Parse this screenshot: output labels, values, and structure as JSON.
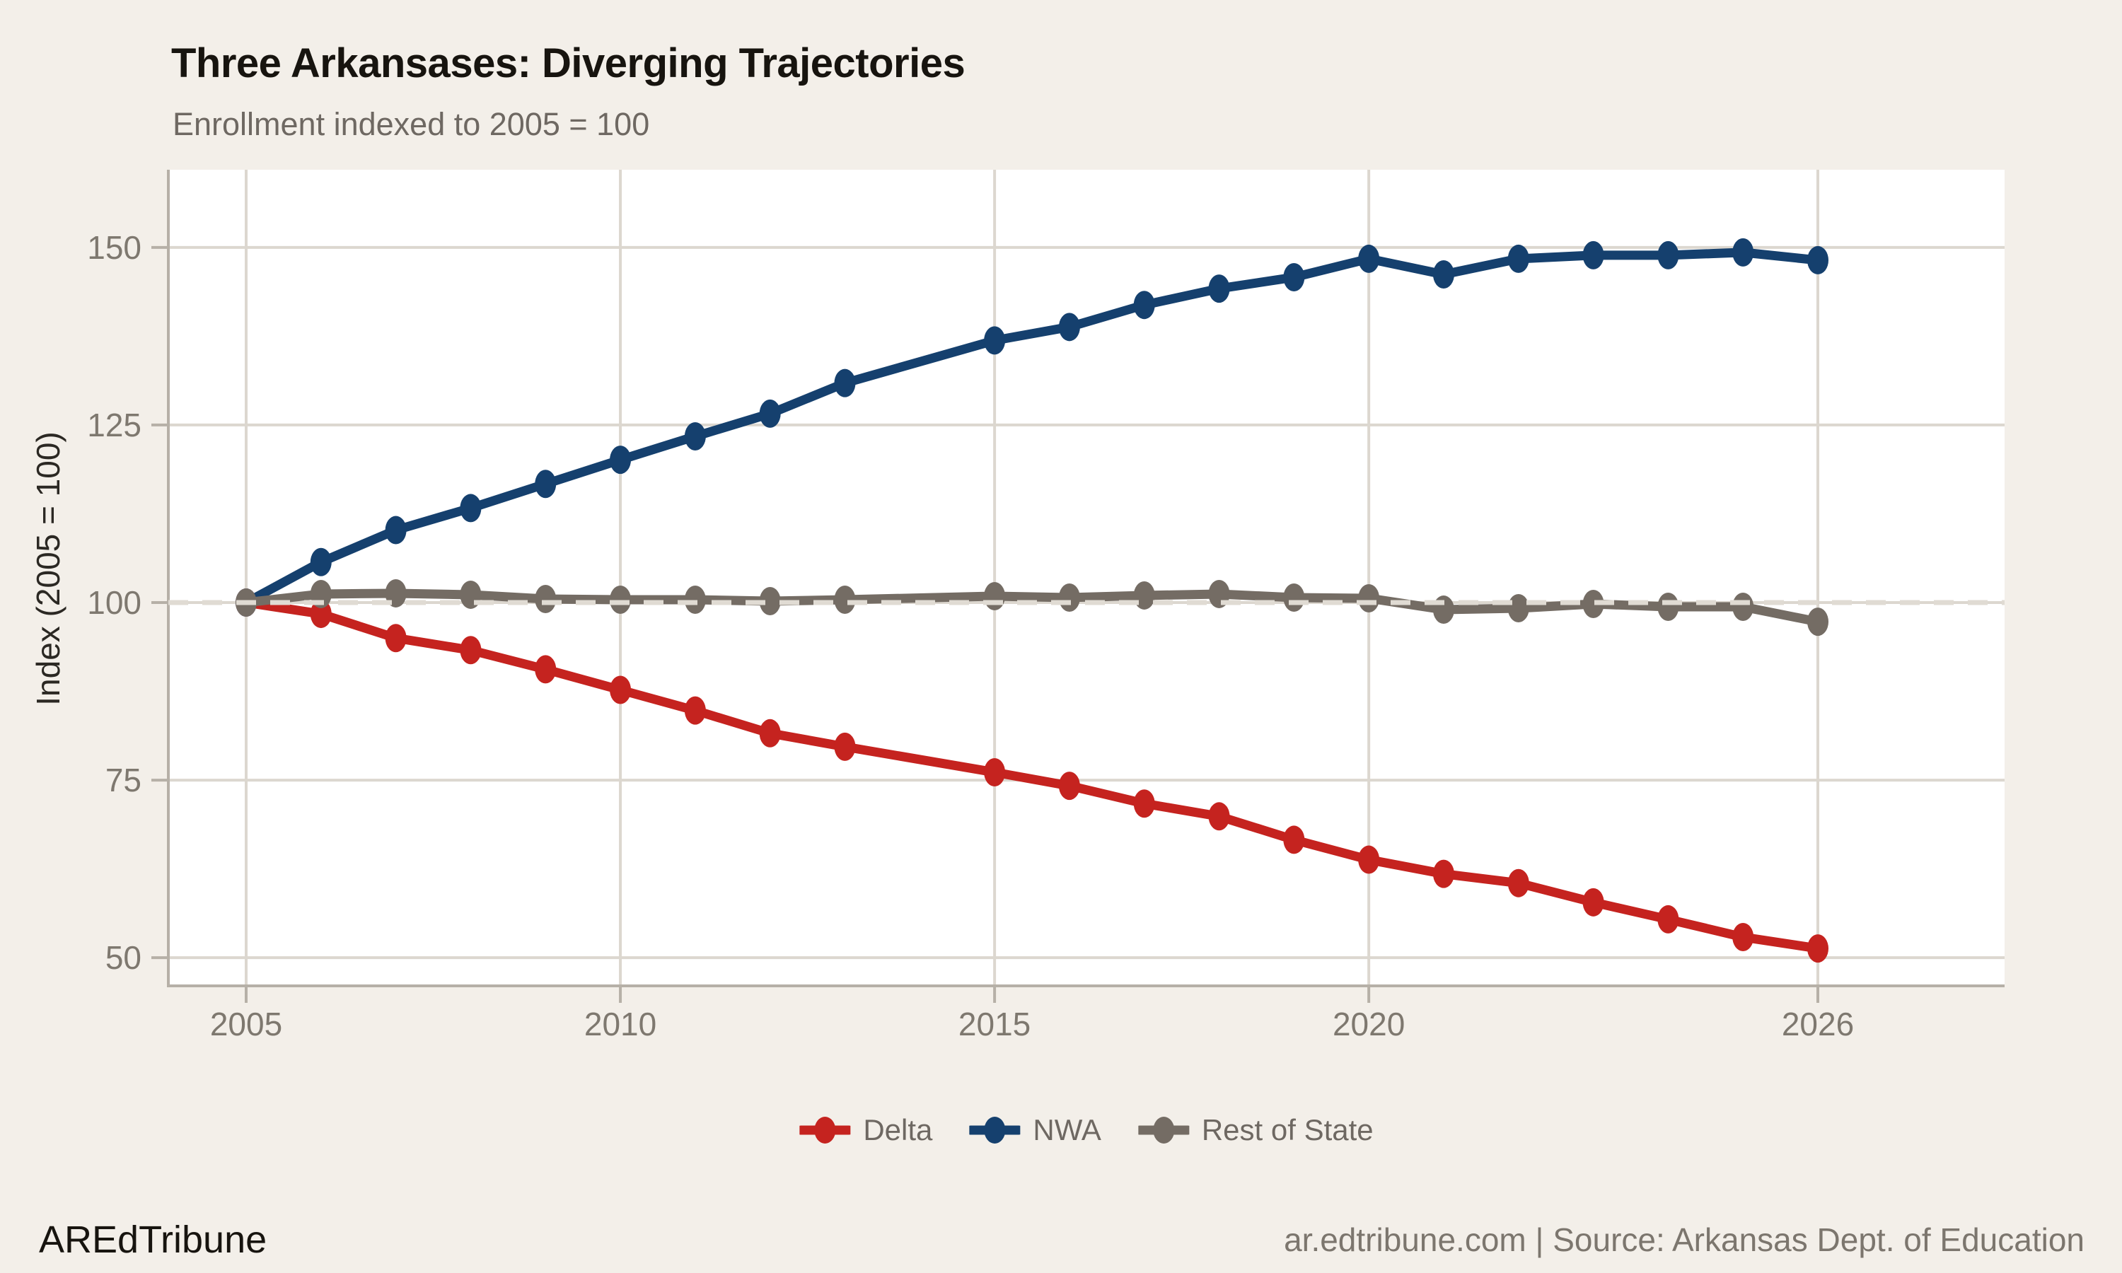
{
  "header": {
    "title": "Three Arkansases: Diverging Trajectories",
    "subtitle": "Enrollment indexed to 2005 = 100"
  },
  "footer": {
    "brand": "AREdTribune",
    "source": "ar.edtribune.com | Source: Arkansas Dept. of Education"
  },
  "chart_data": {
    "type": "line",
    "title": "Three Arkansases: Diverging Trajectories",
    "subtitle": "Enrollment indexed to 2005 = 100",
    "xlabel": "",
    "ylabel": "Index (2005 = 100)",
    "x": [
      2005,
      2006,
      2007,
      2008,
      2009,
      2010,
      2011,
      2012,
      2013,
      2015,
      2016,
      2017,
      2018,
      2019,
      2020,
      2021,
      2022,
      2023,
      2024,
      2025,
      2026
    ],
    "x_tick_years": [
      2005,
      2010,
      2015,
      2020,
      2026
    ],
    "x_tick_labels": [
      "2005",
      "2010",
      "2015",
      "2020",
      "2026"
    ],
    "y_ticks": [
      50,
      75,
      100,
      125,
      150
    ],
    "y_tick_labels": [
      "50",
      "75",
      "100",
      "125",
      "150"
    ],
    "ylim": [
      46,
      161
    ],
    "xlim": [
      2004,
      2028.5
    ],
    "grid": true,
    "legend_position": "bottom",
    "reference_line": 100,
    "series": [
      {
        "name": "Delta",
        "color": "#c5231f",
        "values": [
          100,
          98.4,
          95.0,
          93.3,
          90.6,
          87.7,
          84.8,
          81.6,
          79.7,
          76.1,
          74.2,
          71.7,
          69.9,
          66.6,
          63.8,
          61.8,
          60.5,
          57.8,
          55.4,
          52.9,
          51.3
        ]
      },
      {
        "name": "NWA",
        "color": "#15406e",
        "values": [
          100,
          105.7,
          110.2,
          113.3,
          116.7,
          120.1,
          123.4,
          126.6,
          130.9,
          136.9,
          138.8,
          141.9,
          144.2,
          145.8,
          148.4,
          146.2,
          148.4,
          148.9,
          148.9,
          149.3,
          148.2
        ]
      },
      {
        "name": "Rest of State",
        "color": "#746c64",
        "values": [
          100,
          101.2,
          101.3,
          101.1,
          100.5,
          100.4,
          100.4,
          100.2,
          100.4,
          100.9,
          100.7,
          101.0,
          101.2,
          100.7,
          100.6,
          99.0,
          99.2,
          99.8,
          99.4,
          99.4,
          97.3
        ]
      }
    ]
  },
  "colors": {
    "background": "#f3efe9",
    "panel": "#ffffff",
    "grid": "#dcd7cf",
    "axis": "#b6b0a7",
    "reference": "#e0dbd3",
    "title": "#17140f",
    "subtitle": "#6e6862",
    "tick_text": "#7e786f",
    "legend_text": "#6e6862",
    "footer_text": "#7c766e"
  }
}
